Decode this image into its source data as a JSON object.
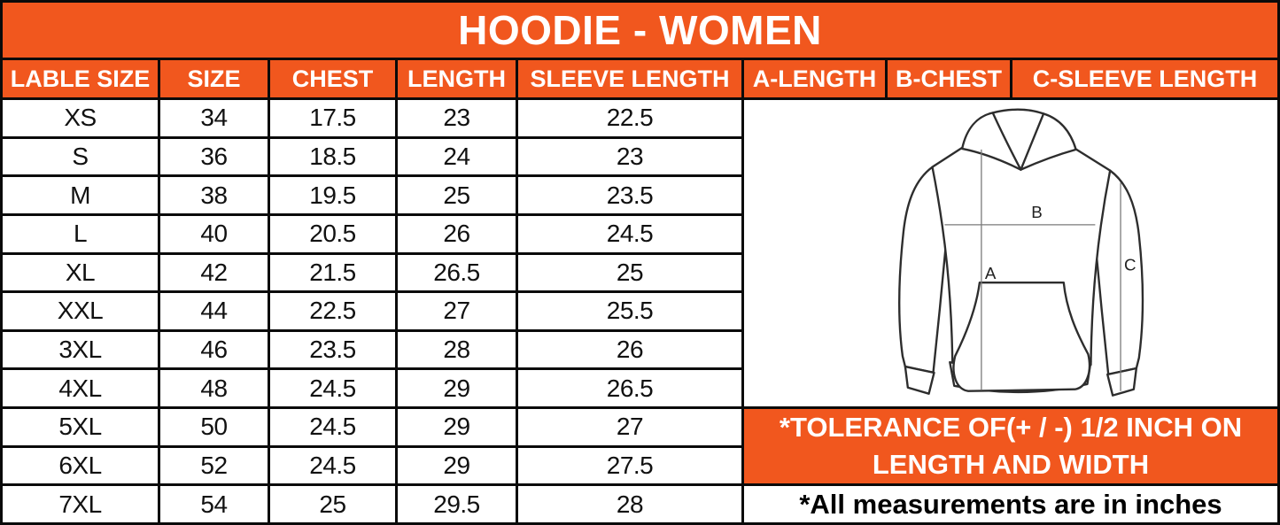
{
  "title": "HOODIE - WOMEN",
  "colors": {
    "accent": "#F1571E",
    "border": "#0A0A0A",
    "header_text": "#FFFFFF",
    "body_text": "#111111"
  },
  "table": {
    "headers": [
      "LABLE SIZE",
      "SIZE",
      "CHEST",
      "LENGTH",
      "SLEEVE LENGTH"
    ],
    "rows": [
      [
        "XS",
        "34",
        "17.5",
        "23",
        "22.5"
      ],
      [
        "S",
        "36",
        "18.5",
        "24",
        "23"
      ],
      [
        "M",
        "38",
        "19.5",
        "25",
        "23.5"
      ],
      [
        "L",
        "40",
        "20.5",
        "26",
        "24.5"
      ],
      [
        "XL",
        "42",
        "21.5",
        "26.5",
        "25"
      ],
      [
        "XXL",
        "44",
        "22.5",
        "27",
        "25.5"
      ],
      [
        "3XL",
        "46",
        "23.5",
        "28",
        "26"
      ],
      [
        "4XL",
        "48",
        "24.5",
        "29",
        "26.5"
      ],
      [
        "5XL",
        "50",
        "24.5",
        "29",
        "27"
      ],
      [
        "6XL",
        "52",
        "24.5",
        "29",
        "27.5"
      ],
      [
        "7XL",
        "54",
        "25",
        "29.5",
        "28"
      ]
    ]
  },
  "diagram": {
    "headers": [
      "A-LENGTH",
      "B-CHEST",
      "C-SLEEVE LENGTH"
    ],
    "labels": {
      "a": "A",
      "b": "B",
      "c": "C"
    }
  },
  "notes": {
    "tolerance": "*TOLERANCE OF(+ / -) 1/2 INCH ON LENGTH AND WIDTH",
    "units": "*All measurements are in inches"
  }
}
